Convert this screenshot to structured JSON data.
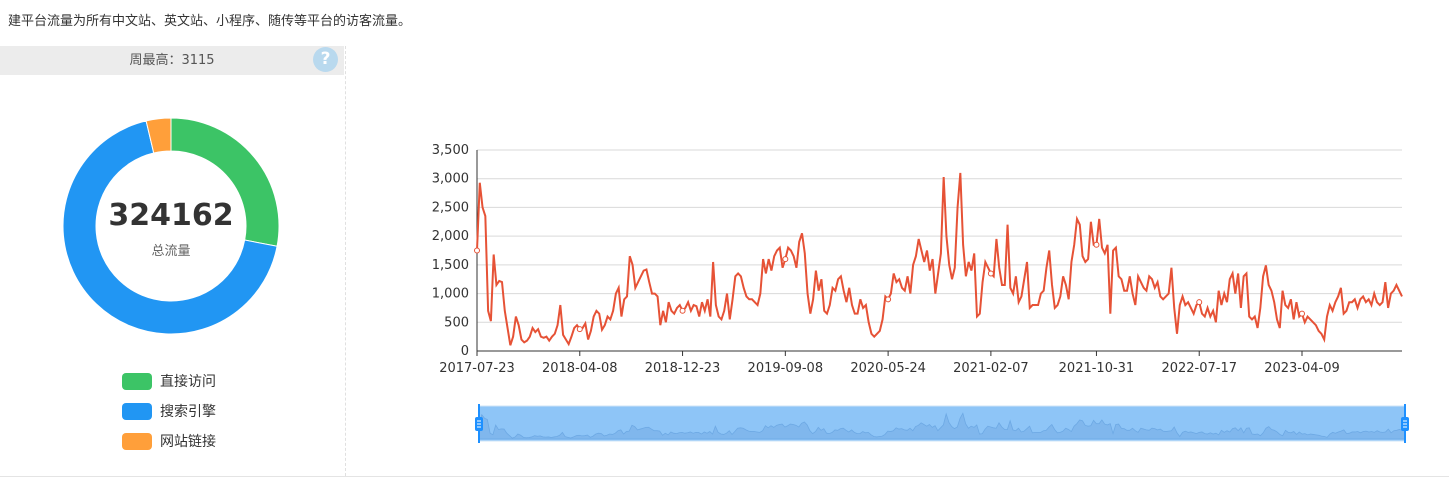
{
  "description": "建平台流量为所有中文站、英文站、小程序、随传等平台的访客流量。",
  "weekly_peak": {
    "label": "周最高：",
    "value": "3115"
  },
  "help_icon": {
    "glyph": "?"
  },
  "donut": {
    "total": "324162",
    "total_label": "总流量",
    "slices": [
      {
        "name": "直接访问",
        "fraction": 0.28,
        "color": "#3cc466"
      },
      {
        "name": "搜索引擎",
        "fraction": 0.683,
        "color": "#2196f3"
      },
      {
        "name": "网站链接",
        "fraction": 0.037,
        "color": "#ff9f3a"
      }
    ]
  },
  "chart_data": {
    "type": "line",
    "title": "",
    "xlabel": "",
    "ylabel": "",
    "ylim": [
      0,
      3500
    ],
    "y_ticks": [
      "0",
      "500",
      "1,000",
      "1,500",
      "2,000",
      "2,500",
      "3,000",
      "3,500"
    ],
    "x_tick_labels": [
      "2017-07-23",
      "2018-04-08",
      "2018-12-23",
      "2019-09-08",
      "2020-05-24",
      "2021-02-07",
      "2021-10-31",
      "2022-07-17",
      "2023-04-09"
    ],
    "x_tick_index": [
      0,
      37,
      74,
      111,
      148,
      185,
      223,
      260,
      297
    ],
    "grid": true,
    "line_color": "#e65236",
    "dataZoom": {
      "start": 0,
      "end": 100
    },
    "series": [
      {
        "values": [
          1750,
          2930,
          2500,
          2350,
          700,
          520,
          1680,
          1150,
          1220,
          1200,
          700,
          400,
          100,
          250,
          600,
          450,
          200,
          150,
          180,
          250,
          400,
          330,
          380,
          250,
          230,
          250,
          180,
          250,
          300,
          450,
          800,
          280,
          200,
          120,
          250,
          400,
          450,
          380,
          400,
          480,
          200,
          350,
          600,
          700,
          650,
          370,
          450,
          600,
          550,
          700,
          1000,
          1100,
          600,
          900,
          950,
          1650,
          1500,
          1100,
          1200,
          1300,
          1400,
          1420,
          1200,
          1000,
          1000,
          950,
          450,
          700,
          500,
          850,
          700,
          650,
          750,
          800,
          700,
          750,
          850,
          700,
          800,
          780,
          600,
          850,
          700,
          900,
          600,
          1550,
          800,
          600,
          550,
          700,
          1000,
          550,
          900,
          1300,
          1350,
          1300,
          1100,
          950,
          900,
          900,
          850,
          800,
          1000,
          1600,
          1350,
          1600,
          1400,
          1650,
          1750,
          1800,
          1450,
          1600,
          1800,
          1750,
          1650,
          1450,
          1900,
          2050,
          1700,
          1000,
          650,
          900,
          1400,
          1050,
          1250,
          700,
          650,
          800,
          1100,
          1050,
          1250,
          1300,
          1050,
          850,
          1100,
          800,
          650,
          650,
          900,
          750,
          800,
          500,
          300,
          250,
          300,
          350,
          550,
          950,
          900,
          1000,
          1350,
          1200,
          1250,
          1100,
          1050,
          1300,
          1000,
          1500,
          1650,
          1950,
          1750,
          1550,
          1750,
          1400,
          1600,
          1000,
          1350,
          1700,
          3030,
          2000,
          1500,
          1250,
          1450,
          2500,
          3100,
          1850,
          1300,
          1550,
          1400,
          1700,
          600,
          650,
          1200,
          1550,
          1450,
          1350,
          1300,
          1950,
          1450,
          1150,
          1150,
          2200,
          1100,
          1000,
          1300,
          850,
          950,
          1250,
          1550,
          750,
          800,
          800,
          800,
          1000,
          1050,
          1450,
          1750,
          1150,
          750,
          800,
          950,
          1300,
          1150,
          900,
          1550,
          1850,
          2300,
          2200,
          1650,
          1550,
          1600,
          2250,
          1850,
          1850,
          2300,
          1800,
          1700,
          1850,
          650,
          1750,
          1800,
          1300,
          1250,
          1050,
          1050,
          1300,
          1000,
          800,
          1300,
          1200,
          1100,
          1050,
          1300,
          1250,
          1100,
          1200,
          950,
          900,
          950,
          1000,
          1450,
          750,
          300,
          800,
          950,
          800,
          850,
          750,
          650,
          800,
          850,
          650,
          600,
          750,
          600,
          700,
          500,
          1050,
          800,
          1000,
          850,
          1250,
          1350,
          1000,
          1350,
          750,
          1300,
          1350,
          600,
          550,
          600,
          400,
          750,
          1300,
          1490,
          1150,
          1050,
          850,
          550,
          400,
          1050,
          800,
          750,
          900,
          550,
          850,
          600,
          650,
          500,
          600,
          550,
          500,
          450,
          350,
          300,
          200,
          600,
          800,
          700,
          850,
          950,
          1100,
          650,
          700,
          850,
          850,
          900,
          750,
          900,
          950,
          850,
          900,
          800,
          1000,
          850,
          800,
          850,
          1200,
          750,
          1000,
          1050,
          1150,
          1050,
          950
        ]
      }
    ]
  }
}
